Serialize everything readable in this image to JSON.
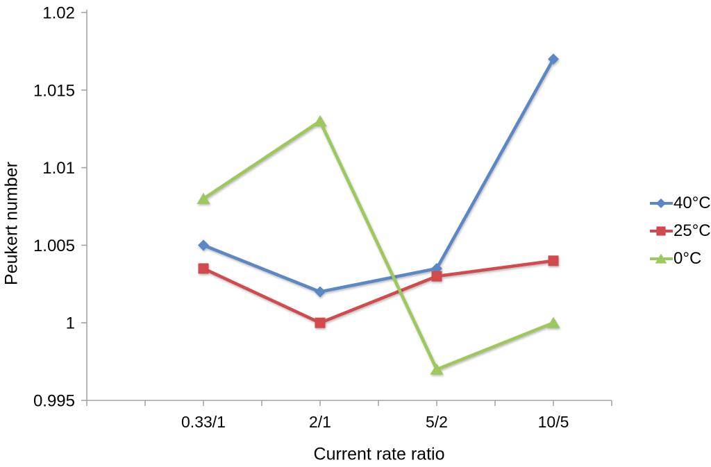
{
  "chart_data": {
    "type": "line",
    "title": "",
    "xlabel": "Current rate ratio",
    "ylabel": "Peukert number",
    "categories": [
      "0.33/1",
      "2/1",
      "5/2",
      "10/5"
    ],
    "series": [
      {
        "name": "40°C",
        "color": "#5b87c5",
        "marker": "diamond",
        "values": [
          1.005,
          1.002,
          1.0035,
          1.017
        ]
      },
      {
        "name": "25°C",
        "color": "#d2494e",
        "marker": "square",
        "values": [
          1.0035,
          1.0,
          1.003,
          1.004
        ]
      },
      {
        "name": "0°C",
        "color": "#9dc85c",
        "marker": "triangle",
        "values": [
          1.008,
          1.013,
          0.997,
          1.0
        ]
      }
    ],
    "ylim": [
      0.995,
      1.02
    ],
    "yticks": [
      {
        "value": 1.02,
        "label": "1.02"
      },
      {
        "value": 1.015,
        "label": "1.015"
      },
      {
        "value": 1.01,
        "label": "1.01"
      },
      {
        "value": 1.005,
        "label": "1.005"
      },
      {
        "value": 1.0,
        "label": "1"
      },
      {
        "value": 0.995,
        "label": "0.995"
      }
    ],
    "grid": false,
    "legend_position": "right",
    "axis_color": "#a3a3a3",
    "text_color": "#000000"
  }
}
